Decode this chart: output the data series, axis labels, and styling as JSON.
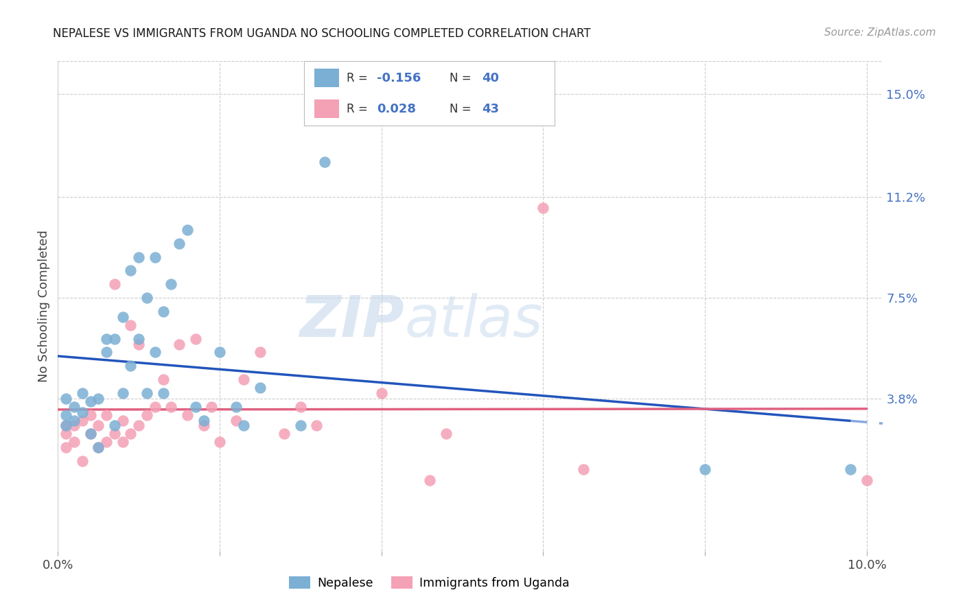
{
  "title": "NEPALESE VS IMMIGRANTS FROM UGANDA NO SCHOOLING COMPLETED CORRELATION CHART",
  "source": "Source: ZipAtlas.com",
  "ylabel": "No Schooling Completed",
  "xlim": [
    0.0,
    0.102
  ],
  "ylim": [
    -0.018,
    0.162
  ],
  "yticks": [
    0.038,
    0.075,
    0.112,
    0.15
  ],
  "ytick_labels": [
    "3.8%",
    "7.5%",
    "11.2%",
    "15.0%"
  ],
  "xticks": [
    0.0,
    0.02,
    0.04,
    0.06,
    0.08,
    0.1
  ],
  "xtick_labels": [
    "0.0%",
    "",
    "",
    "",
    "",
    "10.0%"
  ],
  "nepalese_color": "#7bafd4",
  "uganda_color": "#f4a0b5",
  "trend_color_nepalese": "#2255bb",
  "trend_color_uganda": "#e06080",
  "trend_dash_color": "#88aadd",
  "watermark_zip": "ZIP",
  "watermark_atlas": "atlas",
  "legend_r1": "R = -0.156   N = 40",
  "legend_r2": "R =  0.028   N = 43",
  "nepalese_x": [
    0.001,
    0.001,
    0.001,
    0.002,
    0.002,
    0.003,
    0.003,
    0.004,
    0.004,
    0.005,
    0.005,
    0.006,
    0.006,
    0.007,
    0.007,
    0.008,
    0.008,
    0.009,
    0.009,
    0.01,
    0.01,
    0.011,
    0.011,
    0.012,
    0.012,
    0.013,
    0.013,
    0.014,
    0.015,
    0.016,
    0.017,
    0.018,
    0.02,
    0.022,
    0.023,
    0.025,
    0.03,
    0.033,
    0.08,
    0.098
  ],
  "nepalese_y": [
    0.032,
    0.038,
    0.028,
    0.035,
    0.03,
    0.04,
    0.033,
    0.037,
    0.025,
    0.038,
    0.02,
    0.06,
    0.055,
    0.06,
    0.028,
    0.068,
    0.04,
    0.085,
    0.05,
    0.09,
    0.06,
    0.075,
    0.04,
    0.09,
    0.055,
    0.07,
    0.04,
    0.08,
    0.095,
    0.1,
    0.035,
    0.03,
    0.055,
    0.035,
    0.028,
    0.042,
    0.028,
    0.125,
    0.012,
    0.012
  ],
  "uganda_x": [
    0.001,
    0.001,
    0.001,
    0.002,
    0.002,
    0.003,
    0.003,
    0.004,
    0.004,
    0.005,
    0.005,
    0.006,
    0.006,
    0.007,
    0.007,
    0.008,
    0.008,
    0.009,
    0.009,
    0.01,
    0.01,
    0.011,
    0.012,
    0.013,
    0.014,
    0.015,
    0.016,
    0.017,
    0.018,
    0.019,
    0.02,
    0.022,
    0.023,
    0.025,
    0.028,
    0.03,
    0.032,
    0.04,
    0.046,
    0.048,
    0.06,
    0.065,
    0.1
  ],
  "uganda_y": [
    0.025,
    0.02,
    0.028,
    0.028,
    0.022,
    0.03,
    0.015,
    0.032,
    0.025,
    0.028,
    0.02,
    0.032,
    0.022,
    0.08,
    0.025,
    0.03,
    0.022,
    0.065,
    0.025,
    0.058,
    0.028,
    0.032,
    0.035,
    0.045,
    0.035,
    0.058,
    0.032,
    0.06,
    0.028,
    0.035,
    0.022,
    0.03,
    0.045,
    0.055,
    0.025,
    0.035,
    0.028,
    0.04,
    0.008,
    0.025,
    0.108,
    0.012,
    0.008
  ]
}
